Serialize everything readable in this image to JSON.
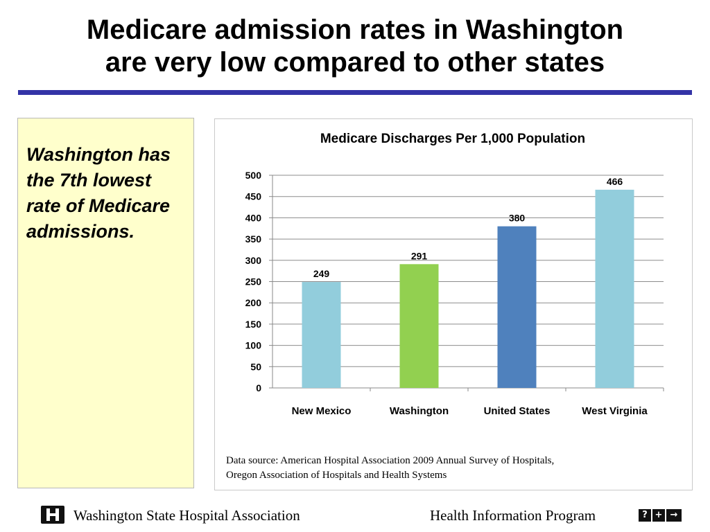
{
  "slide": {
    "title_lines": [
      "Medicare admission rates in Washington",
      "are very low compared to other states"
    ],
    "callout": "Washington has the 7th lowest rate of Medicare admissions.",
    "source_lines": [
      "Data source: American Hospital Association 2009 Annual Survey of Hospitals,",
      "Oregon Association of Hospitals and Health Systems"
    ]
  },
  "footer": {
    "org": "Washington State Hospital Association",
    "program": "Health Information Program",
    "icons": [
      "help-icon",
      "plus-icon",
      "arrow-right-icon"
    ],
    "icon_glyphs": [
      "?",
      "+",
      "→"
    ]
  },
  "colors": {
    "rule": "#3333a6",
    "callout_bg": "#ffffcc"
  },
  "chart_data": {
    "type": "bar",
    "title": "Medicare Discharges Per 1,000 Population",
    "xlabel": "",
    "ylabel": "",
    "categories": [
      "New Mexico",
      "Washington",
      "United States",
      "West Virginia"
    ],
    "values": [
      249,
      291,
      380,
      466
    ],
    "data_labels": [
      "249",
      "291",
      "380",
      "466"
    ],
    "bar_colors": [
      "#92cddc",
      "#92d050",
      "#4f81bd",
      "#92cddc"
    ],
    "ylim": [
      0,
      500
    ],
    "yticks": [
      0,
      50,
      100,
      150,
      200,
      250,
      300,
      350,
      400,
      450,
      500
    ],
    "grid": true,
    "legend": "none"
  }
}
